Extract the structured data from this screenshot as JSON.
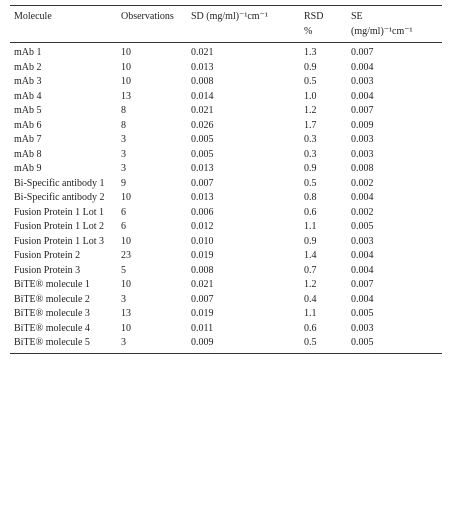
{
  "table": {
    "header": [
      "Molecule",
      "Observations",
      "SD (mg/ml)⁻¹cm⁻¹",
      "RSD %",
      "SE (mg/ml)⁻¹cm⁻¹"
    ],
    "rows": [
      [
        "mAb 1",
        "10",
        "0.021",
        "1.3",
        "0.007"
      ],
      [
        "mAb 2",
        "10",
        "0.013",
        "0.9",
        "0.004"
      ],
      [
        "mAb 3",
        "10",
        "0.008",
        "0.5",
        "0.003"
      ],
      [
        "mAb 4",
        "13",
        "0.014",
        "1.0",
        "0.004"
      ],
      [
        "mAb 5",
        "8",
        "0.021",
        "1.2",
        "0.007"
      ],
      [
        "mAb 6",
        "8",
        "0.026",
        "1.7",
        "0.009"
      ],
      [
        "mAb 7",
        "3",
        "0.005",
        "0.3",
        "0.003"
      ],
      [
        "mAb 8",
        "3",
        "0.005",
        "0.3",
        "0.003"
      ],
      [
        "mAb 9",
        "3",
        "0.013",
        "0.9",
        "0.008"
      ],
      [
        "Bi-Specific antibody 1",
        "9",
        "0.007",
        "0.5",
        "0.002"
      ],
      [
        "Bi-Specific antibody 2",
        "10",
        "0.013",
        "0.8",
        "0.004"
      ],
      [
        "Fusion Protein 1 Lot 1",
        "6",
        "0.006",
        "0.6",
        "0.002"
      ],
      [
        "Fusion Protein 1 Lot 2",
        "6",
        "0.012",
        "1.1",
        "0.005"
      ],
      [
        "Fusion Protein 1 Lot 3",
        "10",
        "0.010",
        "0.9",
        "0.003"
      ],
      [
        "Fusion Protein 2",
        "23",
        "0.019",
        "1.4",
        "0.004"
      ],
      [
        "Fusion Protein 3",
        "5",
        "0.008",
        "0.7",
        "0.004"
      ],
      [
        "BiTE® molecule 1",
        "10",
        "0.021",
        "1.2",
        "0.007"
      ],
      [
        "BiTE® molecule 2",
        "3",
        "0.007",
        "0.4",
        "0.004"
      ],
      [
        "BiTE® molecule 3",
        "13",
        "0.019",
        "1.1",
        "0.005"
      ],
      [
        "BiTE® molecule 4",
        "10",
        "0.011",
        "0.6",
        "0.003"
      ],
      [
        "BiTE® molecule 5",
        "3",
        "0.009",
        "0.5",
        "0.005"
      ]
    ]
  }
}
